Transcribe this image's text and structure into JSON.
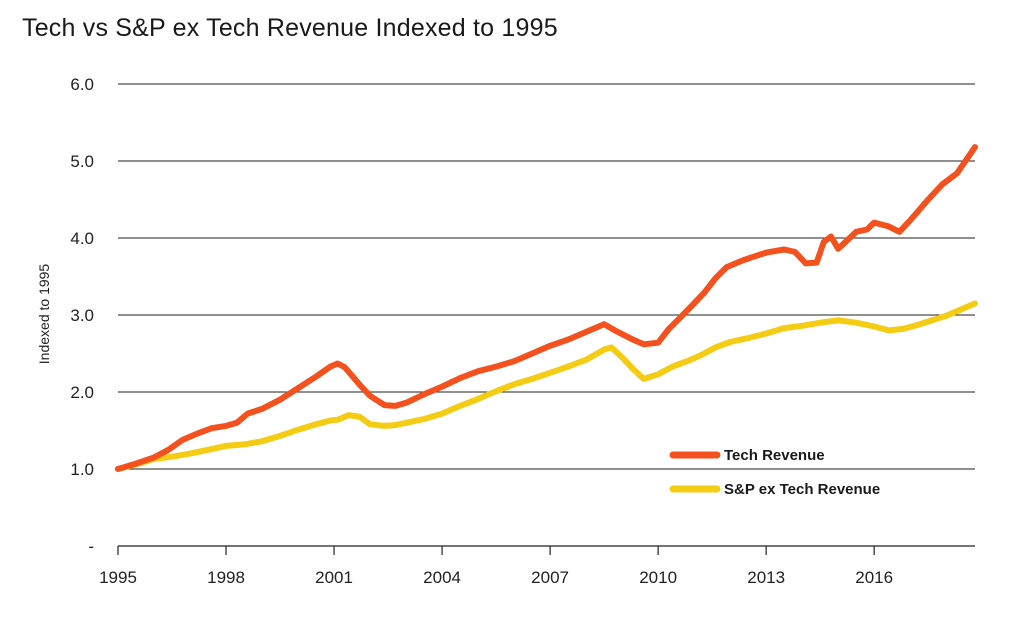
{
  "chart_data": {
    "type": "line",
    "title": "Tech vs S&P ex Tech Revenue Indexed to 1995",
    "xlabel": "",
    "ylabel": "Indexed to 1995",
    "xlim": [
      1995,
      2018.8
    ],
    "ylim": [
      0,
      6
    ],
    "y_ticks": [
      "-",
      "1.0",
      "2.0",
      "3.0",
      "4.0",
      "5.0",
      "6.0"
    ],
    "x_ticks": [
      "1995",
      "1998",
      "2001",
      "2004",
      "2007",
      "2010",
      "2013",
      "2016"
    ],
    "grid": "horizontal",
    "legend_position": "bottom-right",
    "series": [
      {
        "name": "Tech Revenue",
        "color": "#f4511e",
        "x": [
          1995,
          1995.5,
          1996,
          1996.4,
          1996.8,
          1997.2,
          1997.6,
          1998,
          1998.3,
          1998.6,
          1999,
          1999.5,
          2000,
          2000.5,
          2000.9,
          2001.1,
          2001.3,
          2001.7,
          2002,
          2002.4,
          2002.7,
          2003,
          2003.5,
          2004,
          2004.5,
          2005,
          2005.5,
          2006,
          2006.5,
          2007,
          2007.5,
          2008,
          2008.5,
          2008.8,
          2009.3,
          2009.6,
          2010,
          2010.3,
          2010.6,
          2011,
          2011.3,
          2011.6,
          2011.9,
          2012.3,
          2012.6,
          2013,
          2013.5,
          2013.8,
          2014.1,
          2014.4,
          2014.6,
          2014.8,
          2015,
          2015.5,
          2015.8,
          2016,
          2016.4,
          2016.7,
          2017,
          2017.5,
          2017.9,
          2018.3,
          2018.8
        ],
        "values": [
          1.0,
          1.07,
          1.15,
          1.25,
          1.38,
          1.46,
          1.53,
          1.56,
          1.6,
          1.72,
          1.78,
          1.9,
          2.05,
          2.2,
          2.33,
          2.37,
          2.32,
          2.1,
          1.95,
          1.83,
          1.82,
          1.86,
          1.97,
          2.07,
          2.18,
          2.27,
          2.33,
          2.4,
          2.5,
          2.6,
          2.68,
          2.78,
          2.88,
          2.8,
          2.68,
          2.62,
          2.64,
          2.82,
          2.96,
          3.15,
          3.3,
          3.48,
          3.62,
          3.7,
          3.75,
          3.81,
          3.85,
          3.82,
          3.67,
          3.68,
          3.95,
          4.02,
          3.86,
          4.08,
          4.11,
          4.2,
          4.15,
          4.08,
          4.23,
          4.5,
          4.7,
          4.84,
          5.18
        ]
      },
      {
        "name": "S&P ex Tech Revenue",
        "color": "#f5cc14",
        "x": [
          1995,
          1995.5,
          1996,
          1996.5,
          1997,
          1997.5,
          1998,
          1998.5,
          1999,
          1999.5,
          2000,
          2000.5,
          2000.9,
          2001.1,
          2001.4,
          2001.7,
          2002,
          2002.4,
          2002.7,
          2003,
          2003.5,
          2004,
          2004.5,
          2005,
          2005.5,
          2006,
          2006.5,
          2007,
          2007.5,
          2008,
          2008.5,
          2008.7,
          2009,
          2009.3,
          2009.6,
          2010,
          2010.4,
          2010.8,
          2011.2,
          2011.6,
          2012,
          2012.5,
          2013,
          2013.5,
          2014,
          2014.5,
          2015,
          2015.5,
          2016,
          2016.4,
          2016.8,
          2017.2,
          2017.6,
          2018,
          2018.4,
          2018.8
        ],
        "values": [
          1.0,
          1.06,
          1.13,
          1.16,
          1.2,
          1.25,
          1.3,
          1.32,
          1.36,
          1.43,
          1.51,
          1.58,
          1.63,
          1.64,
          1.7,
          1.68,
          1.58,
          1.56,
          1.57,
          1.6,
          1.65,
          1.72,
          1.82,
          1.91,
          2.01,
          2.1,
          2.17,
          2.25,
          2.33,
          2.42,
          2.55,
          2.58,
          2.45,
          2.3,
          2.17,
          2.23,
          2.33,
          2.4,
          2.48,
          2.58,
          2.65,
          2.7,
          2.76,
          2.83,
          2.86,
          2.9,
          2.93,
          2.9,
          2.85,
          2.8,
          2.82,
          2.87,
          2.93,
          2.99,
          3.07,
          3.15
        ]
      }
    ]
  }
}
